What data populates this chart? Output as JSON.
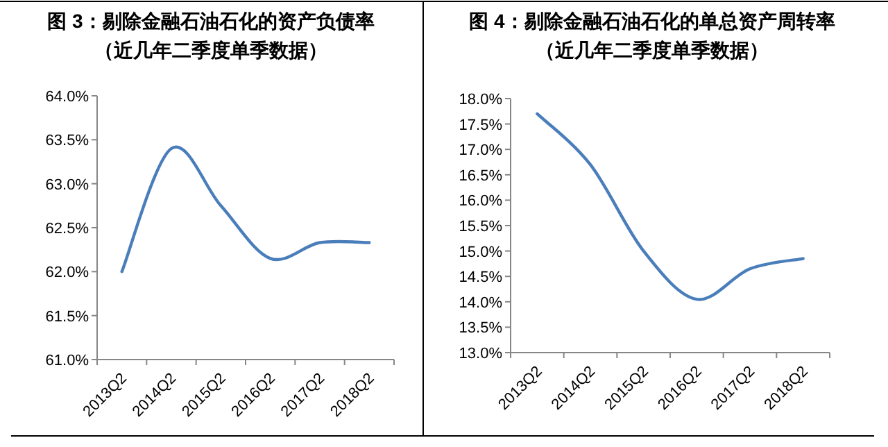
{
  "chart_data": [
    {
      "type": "line",
      "title": "图 3：剔除金融石油石化的资产负债率",
      "subtitle": "（近几年二季度单季数据）",
      "categories": [
        "2013Q2",
        "2014Q2",
        "2015Q2",
        "2016Q2",
        "2017Q2",
        "2018Q2"
      ],
      "series": [
        {
          "color": "#4a7ebb",
          "values": [
            62.0,
            63.4,
            62.75,
            62.15,
            62.33,
            62.33
          ]
        }
      ],
      "ylim": [
        61,
        64
      ],
      "yticks": [
        {
          "value": 61,
          "label": "61.0%"
        },
        {
          "value": 61.5,
          "label": "61.5%"
        },
        {
          "value": 62,
          "label": "62.0%"
        },
        {
          "value": 62.5,
          "label": "62.5%"
        },
        {
          "value": 63,
          "label": "63.0%"
        },
        {
          "value": 63.5,
          "label": "63.5%"
        },
        {
          "value": 64,
          "label": "64.0%"
        }
      ]
    },
    {
      "type": "line",
      "title": "图 4：剔除金融石油石化的单总资产周转率",
      "subtitle": "（近几年二季度单季数据）",
      "categories": [
        "2013Q2",
        "2014Q2",
        "2015Q2",
        "2016Q2",
        "2017Q2",
        "2018Q2"
      ],
      "series": [
        {
          "color": "#4a7ebb",
          "values": [
            17.7,
            16.7,
            15.0,
            14.05,
            14.65,
            14.85
          ]
        }
      ],
      "ylim": [
        13,
        18
      ],
      "yticks": [
        {
          "value": 13,
          "label": "13.0%"
        },
        {
          "value": 13.5,
          "label": "13.5%"
        },
        {
          "value": 14,
          "label": "14.0%"
        },
        {
          "value": 14.5,
          "label": "14.5%"
        },
        {
          "value": 15,
          "label": "15.0%"
        },
        {
          "value": 15.5,
          "label": "15.5%"
        },
        {
          "value": 16,
          "label": "16.0%"
        },
        {
          "value": 16.5,
          "label": "16.5%"
        },
        {
          "value": 17,
          "label": "17.0%"
        },
        {
          "value": 17.5,
          "label": "17.5%"
        },
        {
          "value": 18,
          "label": "18.0%"
        }
      ]
    }
  ]
}
